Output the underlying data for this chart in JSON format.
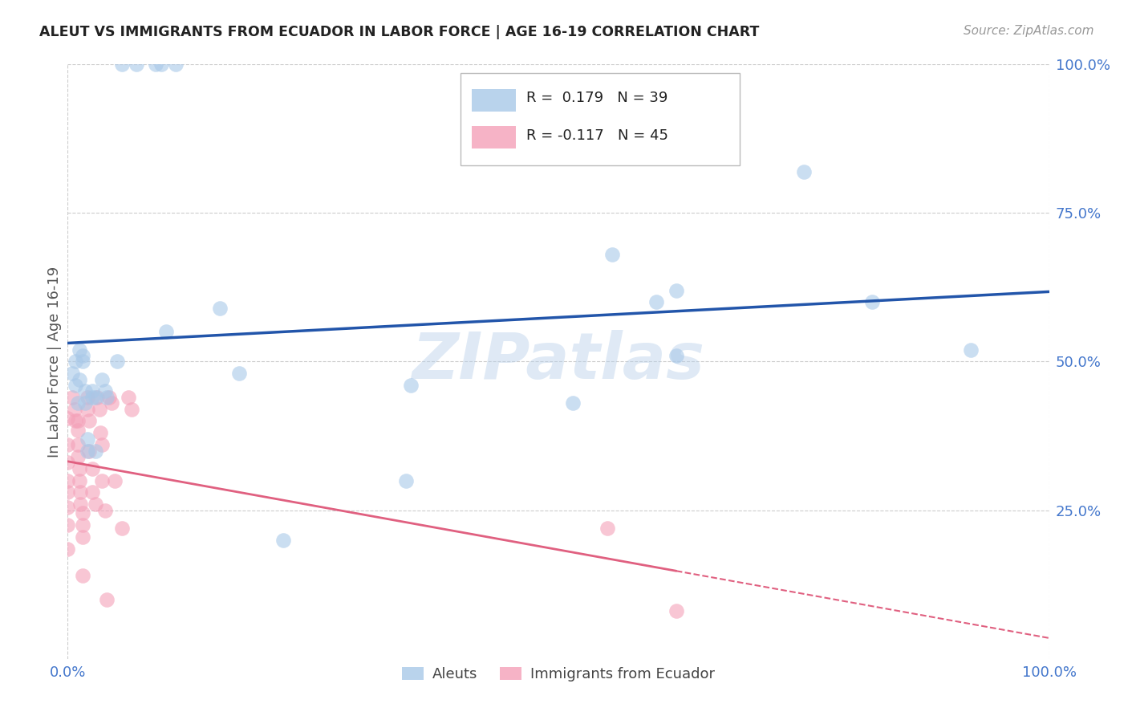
{
  "title": "ALEUT VS IMMIGRANTS FROM ECUADOR IN LABOR FORCE | AGE 16-19 CORRELATION CHART",
  "source": "Source: ZipAtlas.com",
  "ylabel": "In Labor Force | Age 16-19",
  "watermark": "ZIPatlas",
  "blue_color": "#a8c8e8",
  "blue_line_color": "#2255aa",
  "pink_color": "#f4a0b8",
  "pink_line_color": "#e06080",
  "blue_scatter": [
    [
      0.005,
      0.48
    ],
    [
      0.008,
      0.46
    ],
    [
      0.008,
      0.5
    ],
    [
      0.01,
      0.43
    ],
    [
      0.012,
      0.52
    ],
    [
      0.012,
      0.47
    ],
    [
      0.015,
      0.5
    ],
    [
      0.015,
      0.51
    ],
    [
      0.018,
      0.45
    ],
    [
      0.018,
      0.43
    ],
    [
      0.02,
      0.37
    ],
    [
      0.02,
      0.35
    ],
    [
      0.025,
      0.44
    ],
    [
      0.025,
      0.45
    ],
    [
      0.028,
      0.44
    ],
    [
      0.028,
      0.35
    ],
    [
      0.035,
      0.47
    ],
    [
      0.038,
      0.45
    ],
    [
      0.04,
      0.44
    ],
    [
      0.05,
      0.5
    ],
    [
      0.055,
      1.0
    ],
    [
      0.07,
      1.0
    ],
    [
      0.09,
      1.0
    ],
    [
      0.095,
      1.0
    ],
    [
      0.1,
      0.55
    ],
    [
      0.11,
      1.0
    ],
    [
      0.155,
      0.59
    ],
    [
      0.175,
      0.48
    ],
    [
      0.22,
      0.2
    ],
    [
      0.345,
      0.3
    ],
    [
      0.35,
      0.46
    ],
    [
      0.515,
      0.43
    ],
    [
      0.555,
      0.68
    ],
    [
      0.6,
      0.6
    ],
    [
      0.62,
      0.62
    ],
    [
      0.62,
      0.51
    ],
    [
      0.75,
      0.82
    ],
    [
      0.82,
      0.6
    ],
    [
      0.92,
      0.52
    ]
  ],
  "pink_scatter": [
    [
      0.0,
      0.405
    ],
    [
      0.0,
      0.36
    ],
    [
      0.0,
      0.33
    ],
    [
      0.0,
      0.3
    ],
    [
      0.0,
      0.28
    ],
    [
      0.0,
      0.255
    ],
    [
      0.0,
      0.225
    ],
    [
      0.0,
      0.185
    ],
    [
      0.005,
      0.44
    ],
    [
      0.007,
      0.42
    ],
    [
      0.008,
      0.4
    ],
    [
      0.01,
      0.4
    ],
    [
      0.01,
      0.385
    ],
    [
      0.01,
      0.36
    ],
    [
      0.01,
      0.34
    ],
    [
      0.012,
      0.32
    ],
    [
      0.012,
      0.3
    ],
    [
      0.013,
      0.28
    ],
    [
      0.013,
      0.26
    ],
    [
      0.015,
      0.245
    ],
    [
      0.015,
      0.225
    ],
    [
      0.015,
      0.205
    ],
    [
      0.015,
      0.14
    ],
    [
      0.02,
      0.44
    ],
    [
      0.02,
      0.42
    ],
    [
      0.022,
      0.4
    ],
    [
      0.022,
      0.35
    ],
    [
      0.025,
      0.32
    ],
    [
      0.025,
      0.28
    ],
    [
      0.028,
      0.26
    ],
    [
      0.03,
      0.44
    ],
    [
      0.032,
      0.42
    ],
    [
      0.033,
      0.38
    ],
    [
      0.035,
      0.36
    ],
    [
      0.035,
      0.3
    ],
    [
      0.038,
      0.25
    ],
    [
      0.04,
      0.1
    ],
    [
      0.042,
      0.44
    ],
    [
      0.045,
      0.43
    ],
    [
      0.048,
      0.3
    ],
    [
      0.055,
      0.22
    ],
    [
      0.062,
      0.44
    ],
    [
      0.065,
      0.42
    ],
    [
      0.55,
      0.22
    ],
    [
      0.62,
      0.08
    ]
  ],
  "blue_R": 0.179,
  "blue_N": 39,
  "pink_R": -0.117,
  "pink_N": 45,
  "xlim": [
    0.0,
    1.0
  ],
  "ylim": [
    0.0,
    1.0
  ],
  "grid_color": "#cccccc",
  "background_color": "#ffffff",
  "fig_background": "#ffffff",
  "tick_color": "#4477cc",
  "ylabel_color": "#555555",
  "title_color": "#222222",
  "source_color": "#999999"
}
